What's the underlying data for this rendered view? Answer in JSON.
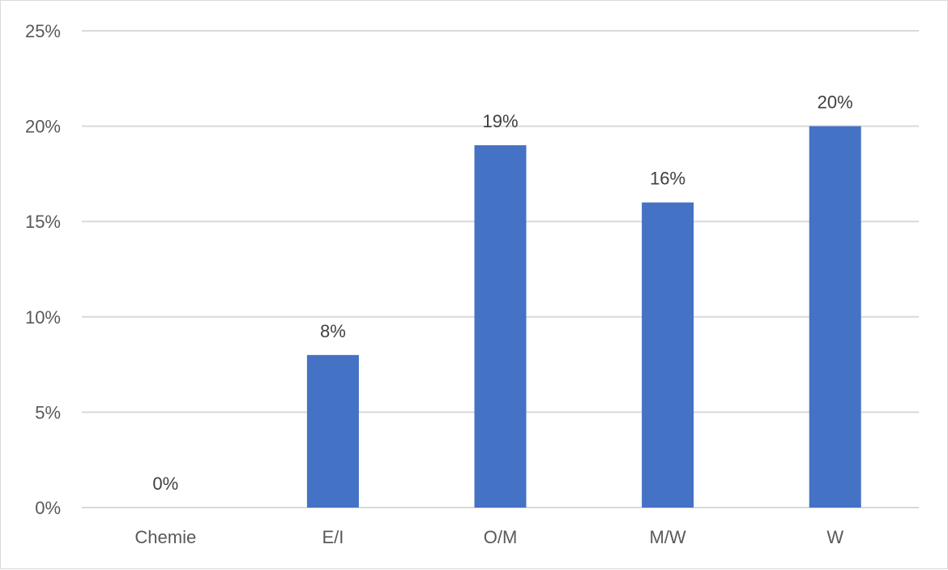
{
  "chart_data": {
    "type": "bar",
    "categories": [
      "Chemie",
      "E/I",
      "O/M",
      "M/W",
      "W"
    ],
    "values": [
      0,
      8,
      19,
      16,
      20
    ],
    "data_labels": [
      "0%",
      "8%",
      "19%",
      "16%",
      "20%"
    ],
    "y_ticks": [
      "0%",
      "5%",
      "10%",
      "15%",
      "20%",
      "25%"
    ],
    "ylim": [
      0,
      25
    ],
    "y_unit": "%",
    "grid": true,
    "legend": "none",
    "bar_color": "#4472C4"
  }
}
